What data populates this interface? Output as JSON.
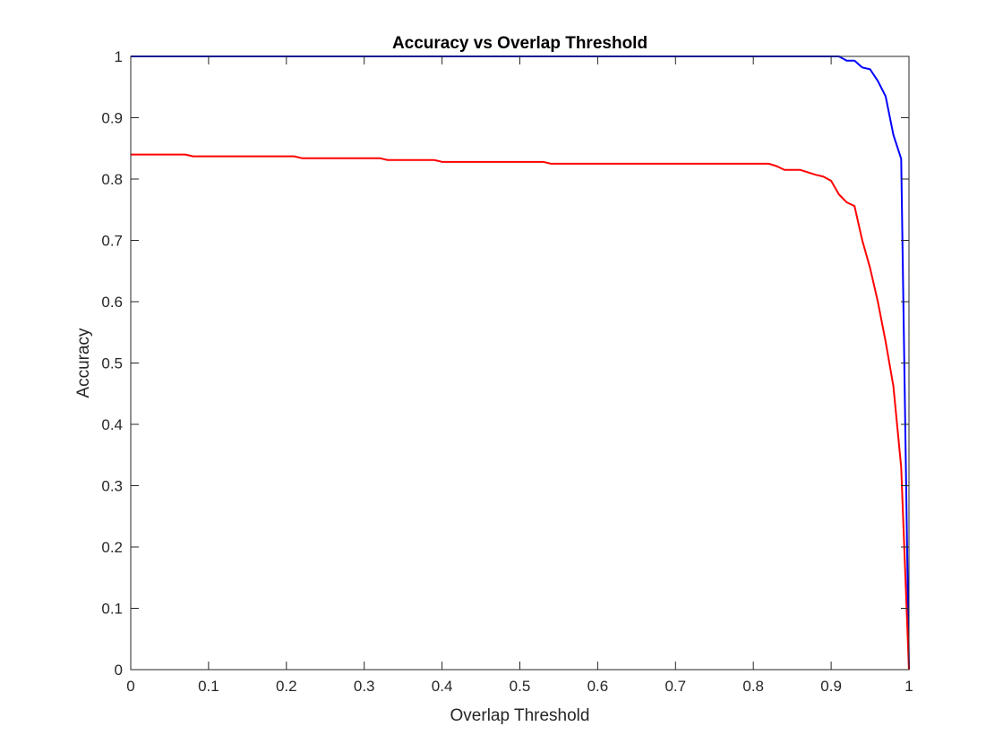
{
  "chart_data": {
    "type": "line",
    "title": "Accuracy vs Overlap Threshold",
    "xlabel": "Overlap Threshold",
    "ylabel": "Accuracy",
    "xlim": [
      0,
      1
    ],
    "ylim": [
      0,
      1
    ],
    "xticks": [
      0,
      0.1,
      0.2,
      0.3,
      0.4,
      0.5,
      0.6,
      0.7,
      0.8,
      0.9,
      1
    ],
    "xtick_labels": [
      "0",
      "0.1",
      "0.2",
      "0.3",
      "0.4",
      "0.5",
      "0.6",
      "0.7",
      "0.8",
      "0.9",
      "1"
    ],
    "yticks": [
      0,
      0.1,
      0.2,
      0.3,
      0.4,
      0.5,
      0.6,
      0.7,
      0.8,
      0.9,
      1
    ],
    "ytick_labels": [
      "0",
      "0.1",
      "0.2",
      "0.3",
      "0.4",
      "0.5",
      "0.6",
      "0.7",
      "0.8",
      "0.9",
      "1"
    ],
    "grid": false,
    "legend": "none",
    "series": [
      {
        "color": "#0000ff",
        "x": [
          0,
          0.1,
          0.2,
          0.3,
          0.4,
          0.5,
          0.6,
          0.7,
          0.8,
          0.9,
          0.91,
          0.92,
          0.93,
          0.94,
          0.95,
          0.96,
          0.97,
          0.98,
          0.99,
          1.0
        ],
        "y": [
          1.0,
          1.0,
          1.0,
          1.0,
          1.0,
          1.0,
          1.0,
          1.0,
          1.0,
          1.0,
          1.0,
          0.993,
          0.993,
          0.982,
          0.979,
          0.96,
          0.935,
          0.872,
          0.833,
          0.0
        ]
      },
      {
        "color": "#ff0000",
        "x": [
          0,
          0.07,
          0.08,
          0.21,
          0.22,
          0.32,
          0.33,
          0.39,
          0.4,
          0.53,
          0.54,
          0.82,
          0.83,
          0.84,
          0.86,
          0.87,
          0.88,
          0.89,
          0.9,
          0.91,
          0.92,
          0.93,
          0.94,
          0.95,
          0.96,
          0.97,
          0.98,
          0.99,
          1.0
        ],
        "y": [
          0.84,
          0.84,
          0.837,
          0.837,
          0.834,
          0.834,
          0.831,
          0.831,
          0.828,
          0.828,
          0.825,
          0.825,
          0.821,
          0.815,
          0.815,
          0.811,
          0.807,
          0.804,
          0.797,
          0.775,
          0.762,
          0.756,
          0.7,
          0.655,
          0.6,
          0.535,
          0.462,
          0.33,
          0.0
        ]
      }
    ]
  }
}
